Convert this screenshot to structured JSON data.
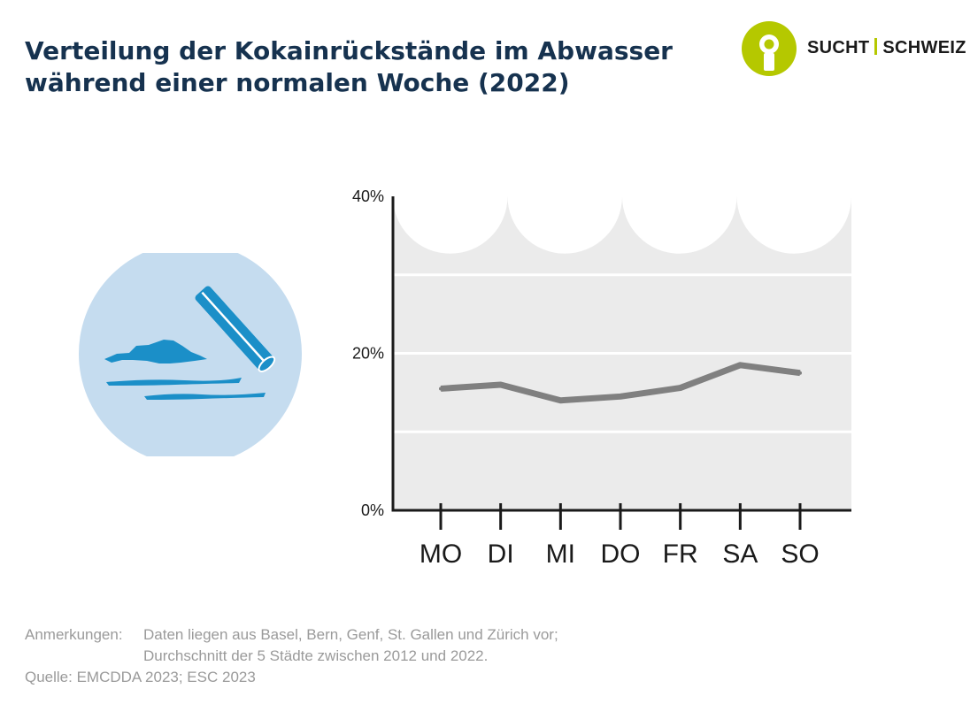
{
  "title": "Verteilung der Kokainrückstände im Abwasser während einer normalen Woche (2022)",
  "logo": {
    "left": "SUCHT",
    "right": "SCHWEIZ"
  },
  "colors": {
    "title": "#16324f",
    "line": "#808080",
    "plot_bg": "#ebebeb",
    "logo_accent": "#b5c800",
    "illustration_bg": "#c5dcef",
    "illustration_blue": "#1b8fc8"
  },
  "chart_data": {
    "type": "line",
    "categories": [
      "MO",
      "DI",
      "MI",
      "DO",
      "FR",
      "SA",
      "SO"
    ],
    "series": [
      {
        "values": [
          15.5,
          16.0,
          14.0,
          14.5,
          15.6,
          18.5,
          17.5
        ]
      }
    ],
    "yticks": [
      "0%",
      "20%",
      "40%"
    ],
    "ytick_values": [
      0,
      20,
      40
    ],
    "ylim": [
      0,
      40
    ],
    "grid": true
  },
  "notes": {
    "label": "Anmerkungen:",
    "line1": "Daten liegen aus Basel, Bern, Genf, St. Gallen und Zürich vor;",
    "line2": "Durchschnitt der 5 Städte zwischen 2012 und 2022.",
    "source": "Quelle: EMCDDA 2023; ESC 2023"
  }
}
